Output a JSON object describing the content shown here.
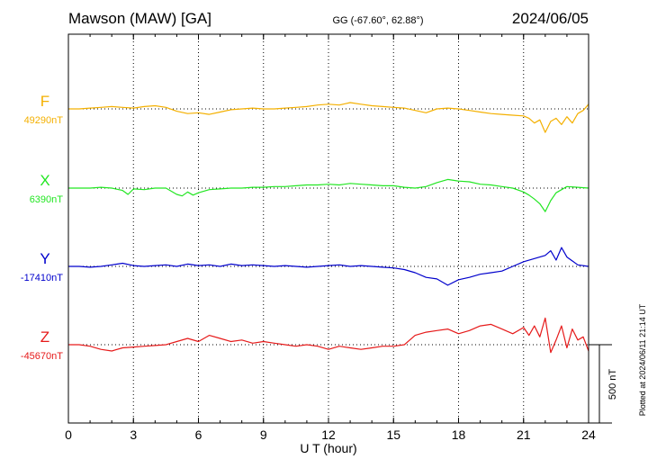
{
  "header": {
    "station": "Mawson (MAW)  [GA]",
    "coords": "GG (-67.60°,  62.88°)",
    "date": "2024/06/05"
  },
  "footnote": "Plotted at 2024/06/11 21:14 UT",
  "scale_bar": {
    "label": "500 nT",
    "value_nT": 500
  },
  "chart_data": {
    "type": "line",
    "xlabel": "U T (hour)",
    "ylabel": "",
    "xlim": [
      0,
      24
    ],
    "xticks": [
      "0",
      "3",
      "6",
      "9",
      "12",
      "15",
      "18",
      "21",
      "24"
    ],
    "grid": true,
    "series": [
      {
        "name": "F",
        "baseline_label": "49290nT",
        "baseline_nT": 49290,
        "color": "#f4b000",
        "x": [
          0,
          0.5,
          1,
          1.5,
          2,
          2.5,
          3,
          3.5,
          4,
          4.5,
          5,
          5.5,
          6,
          6.5,
          7,
          7.5,
          8,
          8.5,
          9,
          9.5,
          10,
          10.5,
          11,
          11.5,
          12,
          12.5,
          13,
          13.5,
          14,
          14.5,
          15,
          15.5,
          16,
          16.5,
          17,
          17.5,
          18,
          18.5,
          19,
          19.5,
          20,
          20.5,
          21,
          21.25,
          21.5,
          21.75,
          22,
          22.25,
          22.5,
          22.75,
          23,
          23.25,
          23.5,
          23.75,
          24
        ],
        "y": [
          0,
          0,
          5,
          10,
          15,
          10,
          5,
          15,
          20,
          10,
          -15,
          -30,
          -25,
          -35,
          -20,
          -5,
          0,
          5,
          0,
          0,
          5,
          10,
          15,
          25,
          30,
          25,
          40,
          30,
          20,
          15,
          10,
          5,
          -10,
          -25,
          0,
          5,
          0,
          -10,
          -20,
          -30,
          -35,
          -40,
          -45,
          -60,
          -90,
          -70,
          -150,
          -80,
          -60,
          -100,
          -50,
          -90,
          -30,
          -10,
          30
        ]
      },
      {
        "name": "X",
        "baseline_label": "6390nT",
        "baseline_nT": 6390,
        "color": "#22e622",
        "x": [
          0,
          0.5,
          1,
          1.5,
          2,
          2.5,
          2.75,
          3,
          3.5,
          4,
          4.5,
          5,
          5.25,
          5.5,
          5.75,
          6,
          6.5,
          7,
          7.5,
          8,
          8.5,
          9,
          9.5,
          10,
          10.5,
          11,
          11.5,
          12,
          12.5,
          13,
          13.5,
          14,
          14.5,
          15,
          15.5,
          16,
          16.5,
          17,
          17.5,
          18,
          18.5,
          19,
          19.5,
          20,
          20.5,
          21,
          21.25,
          21.5,
          21.75,
          22,
          22.25,
          22.5,
          23,
          23.5,
          24
        ],
        "y": [
          0,
          0,
          0,
          5,
          0,
          -15,
          -40,
          -5,
          -10,
          0,
          0,
          -40,
          -50,
          -25,
          -45,
          -30,
          -10,
          -5,
          0,
          0,
          5,
          5,
          10,
          10,
          15,
          20,
          20,
          25,
          20,
          30,
          25,
          20,
          15,
          15,
          5,
          0,
          10,
          35,
          55,
          45,
          40,
          25,
          20,
          10,
          0,
          -25,
          -45,
          -70,
          -100,
          -150,
          -80,
          -30,
          10,
          5,
          0
        ]
      },
      {
        "name": "Y",
        "baseline_label": "-17410nT",
        "baseline_nT": -17410,
        "color": "#0000cc",
        "x": [
          0,
          0.5,
          1,
          1.5,
          2,
          2.5,
          3,
          3.5,
          4,
          4.5,
          5,
          5.5,
          6,
          6.5,
          7,
          7.5,
          8,
          8.5,
          9,
          9.5,
          10,
          10.5,
          11,
          11.5,
          12,
          12.5,
          13,
          13.5,
          14,
          14.5,
          15,
          15.5,
          16,
          16.5,
          17,
          17.5,
          18,
          18.5,
          19,
          19.5,
          20,
          20.5,
          21,
          21.5,
          22,
          22.25,
          22.5,
          22.75,
          23,
          23.5,
          24
        ],
        "y": [
          0,
          0,
          -5,
          0,
          10,
          20,
          5,
          0,
          5,
          10,
          0,
          15,
          5,
          10,
          0,
          15,
          5,
          10,
          5,
          0,
          5,
          0,
          -5,
          0,
          5,
          10,
          0,
          5,
          0,
          -5,
          -10,
          -20,
          -40,
          -70,
          -80,
          -120,
          -85,
          -70,
          -50,
          -40,
          -30,
          0,
          30,
          50,
          70,
          100,
          40,
          120,
          60,
          10,
          0
        ]
      },
      {
        "name": "Z",
        "baseline_label": "-45670nT",
        "baseline_nT": -45670,
        "color": "#e61a1a",
        "x": [
          0,
          0.5,
          1,
          1.5,
          2,
          2.5,
          3,
          3.5,
          4,
          4.5,
          5,
          5.5,
          6,
          6.5,
          7,
          7.5,
          8,
          8.5,
          9,
          9.5,
          10,
          10.5,
          11,
          11.5,
          12,
          12.5,
          13,
          13.5,
          14,
          14.5,
          15,
          15.5,
          16,
          16.5,
          17,
          17.5,
          18,
          18.5,
          19,
          19.5,
          20,
          20.5,
          21,
          21.25,
          21.5,
          21.75,
          22,
          22.25,
          22.5,
          22.75,
          23,
          23.25,
          23.5,
          23.75,
          24
        ],
        "y": [
          0,
          0,
          -10,
          -30,
          -40,
          -20,
          -15,
          -10,
          -5,
          0,
          20,
          40,
          20,
          60,
          40,
          20,
          30,
          10,
          20,
          10,
          0,
          -10,
          0,
          -10,
          -30,
          -10,
          -20,
          -30,
          -20,
          -10,
          -10,
          0,
          60,
          80,
          90,
          100,
          70,
          90,
          120,
          130,
          100,
          70,
          110,
          60,
          120,
          50,
          170,
          -50,
          30,
          120,
          -20,
          100,
          30,
          50,
          -40
        ]
      }
    ]
  }
}
